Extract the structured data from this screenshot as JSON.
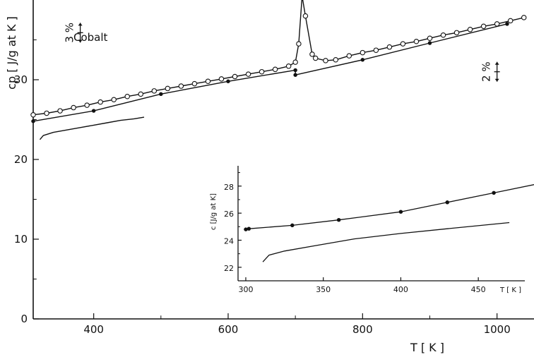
{
  "chart_data": [
    {
      "type": "line",
      "annotation": "Cobalt",
      "xlabel": "T [ K ]",
      "ylabel": "cp [ J/g at K ]",
      "xlim": [
        310,
        1055
      ],
      "ylim": [
        0,
        40
      ],
      "xticks": [
        400,
        600,
        800,
        1000
      ],
      "yticks": [
        0,
        10,
        20,
        30
      ],
      "error_bars": [
        {
          "label": "3 %",
          "x": 380,
          "y": 35.9
        },
        {
          "label": "2 %",
          "x": 1000,
          "y": 31.0
        }
      ],
      "series": [
        {
          "marker": "open-circle",
          "points": [
            [
              310,
              25.6
            ],
            [
              330,
              25.8
            ],
            [
              350,
              26.1
            ],
            [
              370,
              26.5
            ],
            [
              390,
              26.8
            ],
            [
              410,
              27.2
            ],
            [
              430,
              27.5
            ],
            [
              450,
              27.9
            ],
            [
              470,
              28.2
            ],
            [
              490,
              28.6
            ],
            [
              510,
              28.9
            ],
            [
              530,
              29.2
            ],
            [
              550,
              29.5
            ],
            [
              570,
              29.8
            ],
            [
              590,
              30.1
            ],
            [
              610,
              30.4
            ],
            [
              630,
              30.7
            ],
            [
              650,
              31.0
            ],
            [
              670,
              31.3
            ],
            [
              690,
              31.7
            ],
            [
              700,
              32.2
            ],
            [
              705,
              34.5
            ],
            [
              710,
              40.5
            ],
            [
              715,
              38.0
            ],
            [
              725,
              33.2
            ],
            [
              730,
              32.7
            ],
            [
              745,
              32.4
            ],
            [
              760,
              32.5
            ],
            [
              780,
              33.0
            ],
            [
              800,
              33.4
            ],
            [
              820,
              33.7
            ],
            [
              840,
              34.1
            ],
            [
              860,
              34.5
            ],
            [
              880,
              34.8
            ],
            [
              900,
              35.2
            ],
            [
              920,
              35.6
            ],
            [
              940,
              35.9
            ],
            [
              960,
              36.3
            ],
            [
              980,
              36.7
            ],
            [
              1000,
              37.0
            ],
            [
              1020,
              37.4
            ],
            [
              1040,
              37.8
            ]
          ]
        },
        {
          "marker": "filled-circle",
          "points": [
            [
              310,
              24.8
            ],
            [
              400,
              26.1
            ],
            [
              500,
              28.2
            ],
            [
              600,
              29.8
            ],
            [
              700,
              31.2
            ],
            [
              700,
              30.6
            ],
            [
              800,
              32.5
            ],
            [
              900,
              34.6
            ],
            [
              1015,
              37.0
            ]
          ]
        },
        {
          "marker": "none",
          "points": [
            [
              320,
              22.5
            ],
            [
              325,
              23.0
            ],
            [
              340,
              23.4
            ],
            [
              360,
              23.7
            ],
            [
              380,
              24.0
            ],
            [
              400,
              24.3
            ],
            [
              420,
              24.6
            ],
            [
              440,
              24.9
            ],
            [
              460,
              25.1
            ],
            [
              475,
              25.3
            ]
          ]
        }
      ]
    },
    {
      "type": "line",
      "xlabel": "T [ K ]",
      "ylabel": "c [J/g at K]",
      "xlim": [
        295,
        480
      ],
      "ylim": [
        21,
        29.5
      ],
      "xticks": [
        300,
        350,
        400,
        450
      ],
      "yticks": [
        22,
        24,
        26,
        28
      ],
      "series": [
        {
          "marker": "filled-circle",
          "points": [
            [
              300,
              24.8
            ],
            [
              302,
              24.85
            ],
            [
              330,
              25.1
            ],
            [
              360,
              25.5
            ],
            [
              400,
              26.1
            ],
            [
              430,
              26.8
            ],
            [
              460,
              27.5
            ],
            [
              490,
              28.2
            ]
          ]
        },
        {
          "marker": "none",
          "points": [
            [
              311,
              22.4
            ],
            [
              315,
              22.9
            ],
            [
              325,
              23.2
            ],
            [
              345,
              23.6
            ],
            [
              370,
              24.1
            ],
            [
              400,
              24.5
            ],
            [
              430,
              24.85
            ],
            [
              470,
              25.3
            ]
          ]
        }
      ]
    }
  ]
}
